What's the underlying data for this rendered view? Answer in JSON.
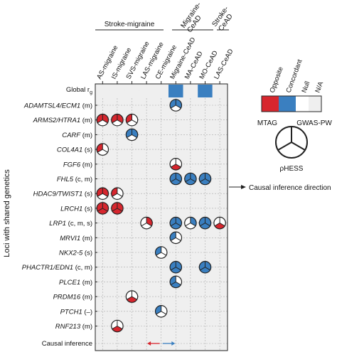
{
  "chart_data": {
    "type": "table",
    "group_labels": {
      "stroke_migraine": "Stroke-migraine",
      "migraine_cead_1": "Migraine-",
      "migraine_cead_2": "CeAD",
      "stroke_cead_1": "Stroke-",
      "stroke_cead_2": "CeAD"
    },
    "columns": [
      "AS-migraine",
      "IS-migraine",
      "SVS-migraine",
      "LAS-migraine",
      "CE-migraine",
      "Migraine-CeAD",
      "MA-CeAD",
      "MO-CeAD",
      "LAS-CeAD"
    ],
    "y_axis_label": "Loci with shared genetics",
    "global_label": {
      "base": "Global r",
      "sub": "g"
    },
    "causal_label": "Causal inference",
    "rows": [
      {
        "name": "ADAMTSL4/ECM1",
        "suffix": " (m)"
      },
      {
        "name": "ARMS2/HTRA1",
        "suffix": " (m)"
      },
      {
        "name": "CARF",
        "suffix": " (m)"
      },
      {
        "name": "COL4A1",
        "suffix": " (s)"
      },
      {
        "name": "FGF6",
        "suffix": " (m)"
      },
      {
        "name": "FHL5",
        "suffix": " (c, m)"
      },
      {
        "name": "HDAC9/TWIST1",
        "suffix": " (s)"
      },
      {
        "name": "LRCH1",
        "suffix": " (s)"
      },
      {
        "name": "LRP1",
        "suffix": " (c, m, s)"
      },
      {
        "name": "MRVI1",
        "suffix": " (m)"
      },
      {
        "name": "NKX2-5",
        "suffix": " (s)"
      },
      {
        "name": "PHACTR1/EDN1",
        "suffix": " (c, m)"
      },
      {
        "name": "PLCE1",
        "suffix": " (m)"
      },
      {
        "name": "PRDM16",
        "suffix": " (m)"
      },
      {
        "name": "PTCH1",
        "suffix": " (–)"
      },
      {
        "name": "RNF213",
        "suffix": " (m)"
      }
    ],
    "global_rg": [
      "na",
      "na",
      "na",
      "na",
      "na",
      "concordant",
      "na",
      "concordant",
      "na"
    ],
    "circles": [
      {
        "row": 0,
        "col": 5,
        "mtag": "concordant",
        "gwas": "concordant",
        "phess": "null"
      },
      {
        "row": 1,
        "col": 0,
        "mtag": "opposite",
        "gwas": "opposite",
        "phess": "null"
      },
      {
        "row": 1,
        "col": 1,
        "mtag": "opposite",
        "gwas": "opposite",
        "phess": "null"
      },
      {
        "row": 1,
        "col": 2,
        "mtag": "opposite",
        "gwas": "null",
        "phess": "null"
      },
      {
        "row": 2,
        "col": 2,
        "mtag": "concordant",
        "gwas": "concordant",
        "phess": "null"
      },
      {
        "row": 3,
        "col": 0,
        "mtag": "opposite",
        "gwas": "null",
        "phess": "null"
      },
      {
        "row": 4,
        "col": 5,
        "mtag": "null",
        "gwas": "null",
        "phess": "opposite"
      },
      {
        "row": 5,
        "col": 5,
        "mtag": "concordant",
        "gwas": "concordant",
        "phess": "concordant"
      },
      {
        "row": 5,
        "col": 6,
        "mtag": "concordant",
        "gwas": "concordant",
        "phess": "concordant"
      },
      {
        "row": 5,
        "col": 7,
        "mtag": "concordant",
        "gwas": "concordant",
        "phess": "concordant"
      },
      {
        "row": 6,
        "col": 0,
        "mtag": "opposite",
        "gwas": "opposite",
        "phess": "null"
      },
      {
        "row": 6,
        "col": 1,
        "mtag": "opposite",
        "gwas": "null",
        "phess": "null"
      },
      {
        "row": 7,
        "col": 0,
        "mtag": "opposite",
        "gwas": "opposite",
        "phess": "opposite"
      },
      {
        "row": 7,
        "col": 1,
        "mtag": "opposite",
        "gwas": "opposite",
        "phess": "opposite"
      },
      {
        "row": 8,
        "col": 3,
        "mtag": "null",
        "gwas": "opposite",
        "phess": "null"
      },
      {
        "row": 8,
        "col": 5,
        "mtag": "concordant",
        "gwas": "concordant",
        "phess": "concordant"
      },
      {
        "row": 8,
        "col": 6,
        "mtag": "null",
        "gwas": "concordant",
        "phess": "null"
      },
      {
        "row": 8,
        "col": 7,
        "mtag": "concordant",
        "gwas": "concordant",
        "phess": "concordant"
      },
      {
        "row": 8,
        "col": 8,
        "mtag": "null",
        "gwas": "null",
        "phess": "opposite"
      },
      {
        "row": 9,
        "col": 5,
        "mtag": "concordant",
        "gwas": "null",
        "phess": "null"
      },
      {
        "row": 10,
        "col": 4,
        "mtag": "concordant",
        "gwas": "null",
        "phess": "null"
      },
      {
        "row": 11,
        "col": 5,
        "mtag": "concordant",
        "gwas": "concordant",
        "phess": "concordant"
      },
      {
        "row": 11,
        "col": 7,
        "mtag": "concordant",
        "gwas": "concordant",
        "phess": "concordant"
      },
      {
        "row": 12,
        "col": 5,
        "mtag": "concordant",
        "gwas": "null",
        "phess": "concordant"
      },
      {
        "row": 13,
        "col": 2,
        "mtag": "null",
        "gwas": "null",
        "phess": "opposite"
      },
      {
        "row": 14,
        "col": 4,
        "mtag": "concordant",
        "gwas": "null",
        "phess": "null"
      },
      {
        "row": 15,
        "col": 1,
        "mtag": "null",
        "gwas": "null",
        "phess": "opposite"
      }
    ],
    "causal_arrows": [
      {
        "direction": "left",
        "col_from": 4,
        "col_to": 3,
        "color": "#d7262e"
      },
      {
        "direction": "right",
        "col_from": 4,
        "col_to": 5,
        "color": "#3a7fc0"
      }
    ],
    "annotation": "Causal inference direction",
    "legend": {
      "color_labels": [
        "Opposite",
        "Concordant",
        "Null",
        "N/A"
      ],
      "mtag": "MTAG",
      "gwas": "GWAS-PW",
      "phess": "ρHESS"
    },
    "colors": {
      "opposite": "#d7262e",
      "concordant": "#3a7fc0",
      "null": "#ffffff",
      "na": "#efefef",
      "grid": "#aaaaaa"
    },
    "grid": true
  }
}
